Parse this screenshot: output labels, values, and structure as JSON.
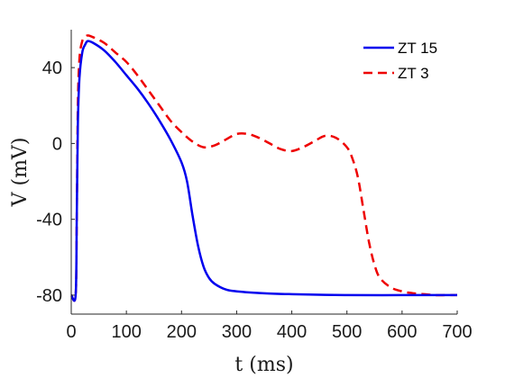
{
  "chart_data": {
    "type": "line",
    "title": "",
    "xlabel": "t (ms)",
    "ylabel": "V (mV)",
    "xlim": [
      0,
      700
    ],
    "ylim": [
      -90,
      60
    ],
    "xticks": [
      0,
      100,
      200,
      300,
      400,
      500,
      600,
      700
    ],
    "yticks": [
      -80,
      -40,
      0,
      40
    ],
    "xtick_labels": [
      "0",
      "100",
      "200",
      "300",
      "400",
      "500",
      "600",
      "700"
    ],
    "ytick_labels": [
      "-80",
      "-40",
      "0",
      "40"
    ],
    "grid": false,
    "legend_position": "top-right",
    "series": [
      {
        "name": "ZT 15",
        "color": "#0000ee",
        "style": "solid",
        "x": [
          0,
          8,
          10,
          12,
          15,
          20,
          25,
          30,
          40,
          60,
          80,
          100,
          120,
          140,
          160,
          180,
          200,
          210,
          220,
          230,
          240,
          250,
          260,
          280,
          300,
          350,
          400,
          450,
          500,
          600,
          700
        ],
        "y": [
          -80,
          -80,
          -40,
          10,
          35,
          48,
          52,
          54,
          53,
          49,
          43,
          36,
          29,
          21,
          12,
          2,
          -10,
          -20,
          -38,
          -54,
          -65,
          -71,
          -74,
          -77,
          -78,
          -79,
          -79.5,
          -79.8,
          -80,
          -80,
          -80
        ]
      },
      {
        "name": "ZT 3",
        "color": "#ee0000",
        "style": "dashed",
        "x": [
          0,
          8,
          10,
          12,
          15,
          20,
          25,
          30,
          40,
          60,
          80,
          100,
          120,
          140,
          160,
          180,
          200,
          220,
          240,
          260,
          280,
          300,
          320,
          340,
          360,
          380,
          400,
          420,
          440,
          460,
          480,
          500,
          510,
          520,
          530,
          540,
          550,
          560,
          580,
          600,
          620,
          640,
          660,
          680,
          700
        ],
        "y": [
          -80,
          -80,
          -40,
          20,
          45,
          54,
          56,
          57,
          56,
          53,
          48,
          43,
          36,
          28,
          20,
          12,
          6,
          1,
          -2,
          -1,
          2,
          5,
          5,
          3,
          0,
          -3,
          -4,
          -2,
          1,
          4,
          3,
          -2,
          -8,
          -18,
          -35,
          -52,
          -64,
          -71,
          -76,
          -78,
          -79,
          -79.5,
          -80,
          -80,
          -80
        ]
      }
    ]
  }
}
